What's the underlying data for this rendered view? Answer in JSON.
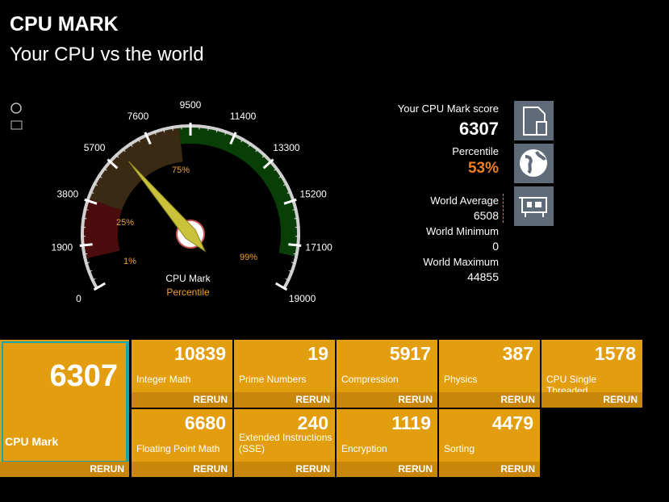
{
  "header": {
    "title": "CPU MARK",
    "subtitle": "Your CPU vs the world"
  },
  "gauge": {
    "ticks": [
      0,
      1900,
      3800,
      5700,
      7600,
      9500,
      11400,
      13300,
      15200,
      17100,
      19000
    ],
    "percentile_labels": [
      "1%",
      "25%",
      "75%",
      "99%"
    ],
    "label": "CPU Mark",
    "sublabel": "Percentile"
  },
  "summary": {
    "score_label": "Your CPU Mark score",
    "score": 6307,
    "percentile_label": "Percentile",
    "percentile": "53%",
    "world_average_label": "World Average",
    "world_average": 6508,
    "world_minimum_label": "World Minimum",
    "world_minimum": 0,
    "world_maximum_label": "World Maximum",
    "world_maximum": 44855
  },
  "main_tile": {
    "value": 6307,
    "label": "CPU Mark",
    "action": "RERUN"
  },
  "tests": [
    {
      "value": 10839,
      "label": "Integer Math",
      "action": "RERUN"
    },
    {
      "value": 19,
      "label": "Prime Numbers",
      "action": "RERUN"
    },
    {
      "value": 5917,
      "label": "Compression",
      "action": "RERUN"
    },
    {
      "value": 387,
      "label": "Physics",
      "action": "RERUN"
    },
    {
      "value": 1578,
      "label": "CPU Single Threaded",
      "action": "RERUN"
    },
    {
      "value": 6680,
      "label": "Floating Point Math",
      "action": "RERUN"
    },
    {
      "value": 240,
      "label": "Extended Instructions (SSE)",
      "action": "RERUN"
    },
    {
      "value": 1119,
      "label": "Encryption",
      "action": "RERUN"
    },
    {
      "value": 4479,
      "label": "Sorting",
      "action": "RERUN"
    }
  ]
}
